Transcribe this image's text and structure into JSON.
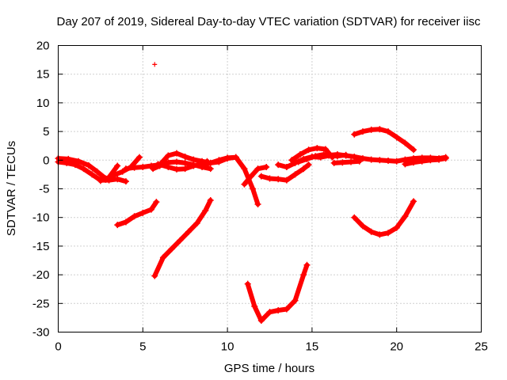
{
  "chart_data": {
    "type": "scatter",
    "title": "Day 207 of 2019, Sidereal Day-to-day VTEC variation (SDTVAR) for receiver iisc",
    "xlabel": "GPS time / hours",
    "ylabel": "SDTVAR / TECUs",
    "xlim": [
      0,
      25
    ],
    "ylim": [
      -30,
      20
    ],
    "xticks": [
      0,
      5,
      10,
      15,
      20,
      25
    ],
    "yticks": [
      -30,
      -25,
      -20,
      -15,
      -10,
      -5,
      0,
      5,
      10,
      15,
      20
    ],
    "x_tick_labels": [
      "0",
      "5",
      "10",
      "15",
      "20",
      "25"
    ],
    "y_tick_labels": [
      "-30",
      "-25",
      "-20",
      "-15",
      "-10",
      "-5",
      "0",
      "5",
      "10",
      "15",
      "20"
    ],
    "grid": true,
    "legend": "none",
    "marker": "+",
    "color": "#ff0000",
    "series": [
      {
        "x": [
          0.0,
          0.5,
          1.0,
          1.5,
          2.0,
          2.5,
          3.0,
          3.5,
          4.0
        ],
        "y": [
          -0.3,
          -0.5,
          -0.8,
          -1.5,
          -2.5,
          -3.5,
          -3.5,
          -3.3,
          -3.7
        ]
      },
      {
        "x": [
          0.0,
          0.6,
          1.2,
          1.8,
          2.3,
          2.8
        ],
        "y": [
          0.3,
          0.2,
          -0.2,
          -0.9,
          -2.0,
          -3.2
        ]
      },
      {
        "x": [
          2.8,
          3.3,
          3.8,
          4.3,
          4.8
        ],
        "y": [
          -3.4,
          -2.6,
          -2.0,
          -1.2,
          0.5
        ]
      },
      {
        "x": [
          2.5,
          3.0,
          3.5
        ],
        "y": [
          -3.6,
          -3.0,
          -1.0
        ]
      },
      {
        "x": [
          3.5,
          4.0,
          4.5,
          5.0,
          5.5,
          5.8
        ],
        "y": [
          -11.3,
          -10.8,
          -9.8,
          -9.2,
          -8.6,
          -7.3
        ]
      },
      {
        "x": [
          4.0,
          4.5,
          5.0,
          5.5,
          6.0,
          6.5,
          7.0,
          7.5,
          8.0,
          8.5,
          9.0,
          9.5,
          10.0,
          10.5
        ],
        "y": [
          -1.5,
          -1.3,
          -1.2,
          -1.0,
          -0.8,
          0.8,
          1.2,
          0.6,
          0.1,
          -0.2,
          -0.5,
          -0.3,
          0.3,
          0.5
        ]
      },
      {
        "x": [
          5.6,
          6.0,
          6.5,
          7.0,
          7.5,
          8.0,
          8.5,
          9.0
        ],
        "y": [
          -1.5,
          -1.0,
          -0.4,
          -0.3,
          -0.5,
          -0.8,
          -1.2,
          -1.5
        ]
      },
      {
        "x": [
          5.9,
          6.5,
          7.0,
          7.5,
          8.0,
          8.5,
          8.8
        ],
        "y": [
          -0.7,
          -1.2,
          -1.6,
          -1.5,
          -1.0,
          -0.6,
          -0.2
        ]
      },
      {
        "x": [
          8.5,
          9.0,
          9.5,
          10.0,
          10.5,
          11.0,
          11.5,
          11.8
        ],
        "y": [
          -1.0,
          -0.5,
          0.0,
          0.4,
          0.5,
          -1.5,
          -5.0,
          -7.7
        ]
      },
      {
        "x": [
          5.7,
          6.2,
          6.7,
          7.2,
          7.7,
          8.2,
          8.7,
          9.0
        ],
        "y": [
          -20.2,
          -17.0,
          -15.5,
          -14.0,
          -12.5,
          -11.0,
          -8.8,
          -7.0
        ]
      },
      {
        "x": [
          5.7
        ],
        "y": [
          16.7
        ]
      },
      {
        "x": [
          11.2,
          11.6,
          12.0,
          12.5,
          13.0,
          13.5,
          14.0,
          14.5,
          14.7
        ],
        "y": [
          -21.6,
          -25.5,
          -28.0,
          -26.5,
          -26.2,
          -26.0,
          -24.5,
          -20.0,
          -18.3
        ]
      },
      {
        "x": [
          11.0,
          11.4,
          11.8,
          12.3
        ],
        "y": [
          -4.2,
          -2.8,
          -1.5,
          -1.2
        ]
      },
      {
        "x": [
          12.0,
          12.5,
          13.0,
          13.5,
          14.0,
          14.5
        ],
        "y": [
          -2.8,
          -3.2,
          -3.3,
          -3.5,
          -2.5,
          -1.5
        ]
      },
      {
        "x": [
          13.0,
          13.5,
          14.0,
          14.5,
          15.0,
          15.5,
          16.0,
          16.5,
          17.0
        ],
        "y": [
          -0.8,
          -1.2,
          -0.5,
          0.2,
          0.6,
          0.5,
          0.8,
          0.7,
          0.9
        ]
      },
      {
        "x": [
          13.8,
          14.3,
          14.8,
          15.3,
          15.8,
          16.2
        ],
        "y": [
          0.0,
          1.0,
          1.8,
          2.1,
          1.9,
          0.5
        ]
      },
      {
        "x": [
          14.2,
          14.7,
          15.2,
          15.7
        ],
        "y": [
          -0.3,
          0.2,
          0.7,
          1.0
        ]
      },
      {
        "x": [
          14.5,
          14.8
        ],
        "y": [
          -1.5,
          -0.8
        ]
      },
      {
        "x": [
          15.8,
          16.5,
          17.0,
          17.5,
          18.0,
          18.5,
          19.0,
          19.5,
          20.0,
          20.5,
          21.0,
          21.5,
          22.0,
          22.5,
          22.9
        ],
        "y": [
          0.8,
          1.0,
          0.8,
          0.6,
          0.3,
          0.1,
          0.0,
          -0.1,
          -0.2,
          0.1,
          0.3,
          0.4,
          0.4,
          0.3,
          0.5
        ]
      },
      {
        "x": [
          16.3,
          16.8,
          17.3,
          17.8
        ],
        "y": [
          -0.5,
          -0.4,
          -0.3,
          -0.2
        ]
      },
      {
        "x": [
          17.5,
          18.0,
          18.5,
          19.0,
          19.5,
          20.0,
          20.5,
          21.0
        ],
        "y": [
          4.5,
          5.0,
          5.3,
          5.4,
          5.0,
          4.0,
          3.0,
          1.8
        ]
      },
      {
        "x": [
          20.5,
          21.0,
          21.5,
          22.0,
          22.5,
          22.9
        ],
        "y": [
          -0.7,
          -0.4,
          -0.2,
          0.0,
          0.1,
          0.3
        ]
      },
      {
        "x": [
          17.5,
          18.0,
          18.5,
          19.0,
          19.5,
          20.0,
          20.5,
          21.0
        ],
        "y": [
          -10.0,
          -11.5,
          -12.5,
          -13.0,
          -12.7,
          -11.8,
          -9.8,
          -7.2
        ]
      }
    ]
  }
}
